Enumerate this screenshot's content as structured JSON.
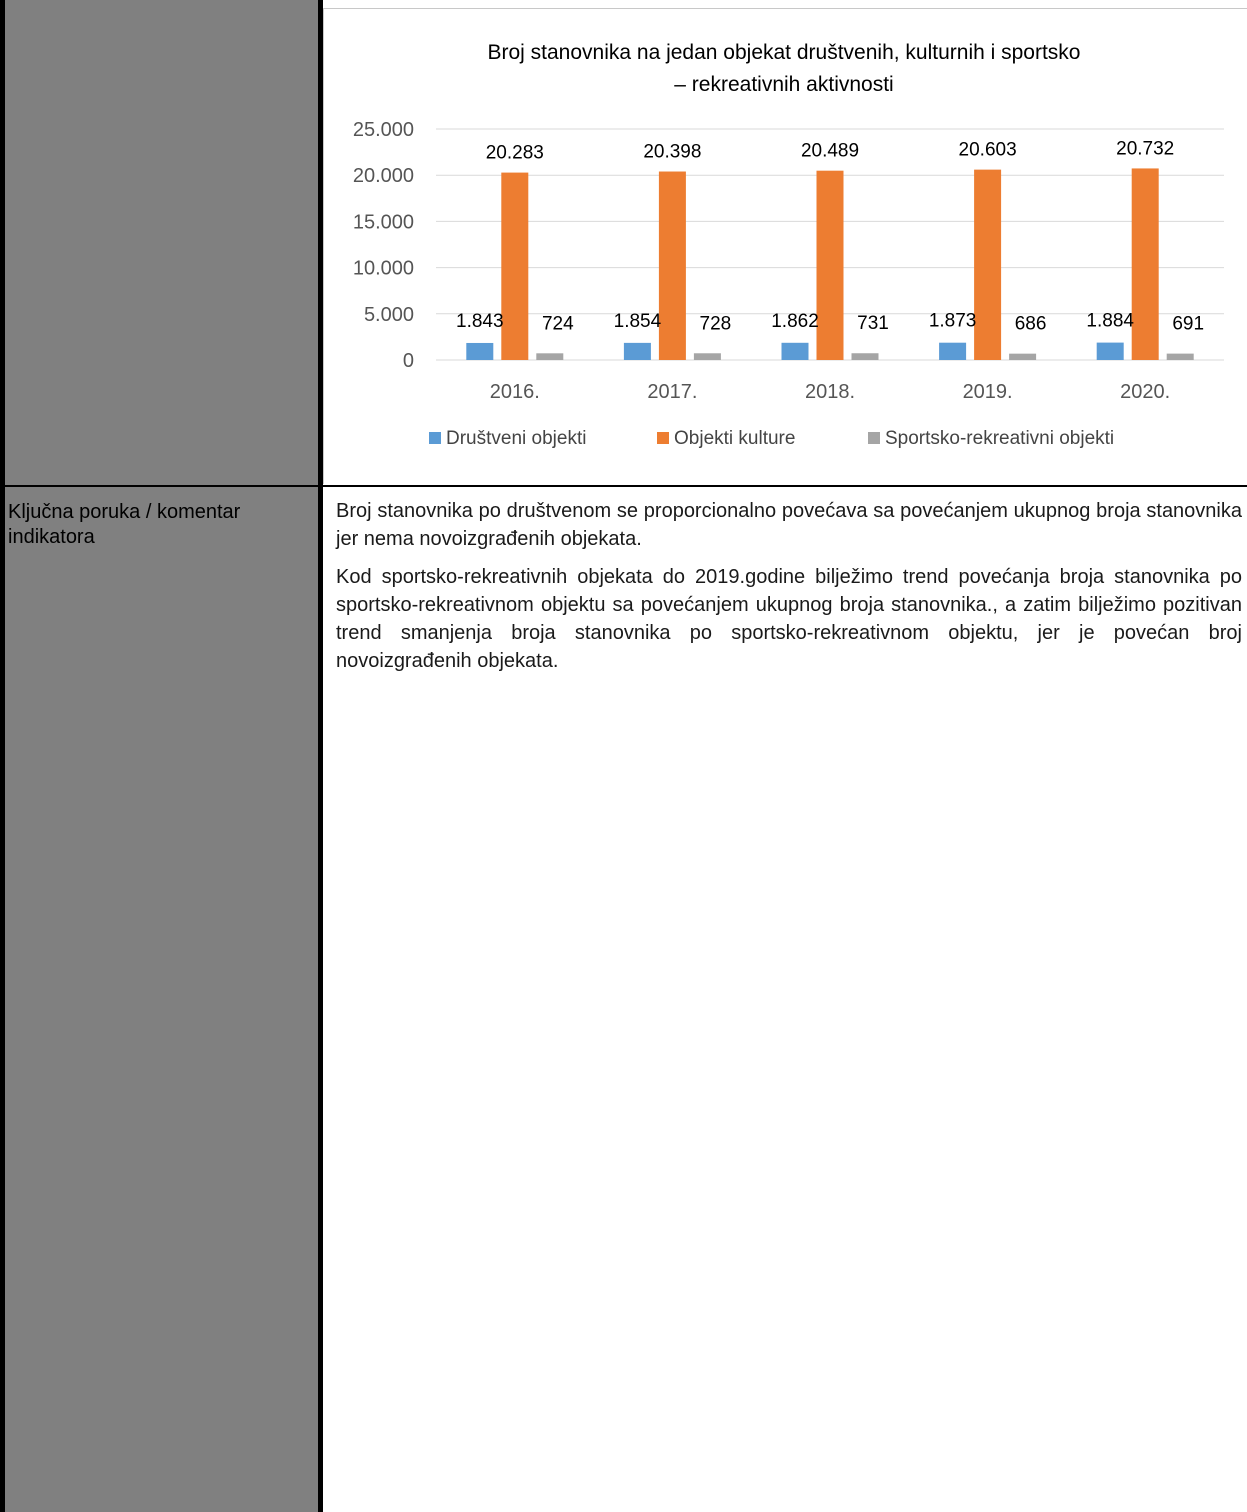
{
  "chart_data": {
    "type": "bar",
    "title_line1": "Broj stanovnika na jedan objekat društvenih, kulturnih i sportsko",
    "title_line2": "– rekreativnih aktivnosti",
    "categories": [
      "2016.",
      "2017.",
      "2018.",
      "2019.",
      "2020."
    ],
    "ylim": [
      0,
      25000
    ],
    "yticks": [
      0,
      5000,
      10000,
      15000,
      20000,
      25000
    ],
    "ytick_labels": [
      "0",
      "5.000",
      "10.000",
      "15.000",
      "20.000",
      "25.000"
    ],
    "grid": true,
    "legend_position": "bottom",
    "series": [
      {
        "name": "Društveni objekti",
        "color": "#5b9bd5",
        "values": [
          1843,
          1854,
          1862,
          1873,
          1884
        ],
        "labels": [
          "1.843",
          "1.854",
          "1.862",
          "1.873",
          "1.884"
        ]
      },
      {
        "name": "Objekti kulture",
        "color": "#ed7d31",
        "values": [
          20283,
          20398,
          20489,
          20603,
          20732
        ],
        "labels": [
          "20.283",
          "20.398",
          "20.489",
          "20.603",
          "20.732"
        ]
      },
      {
        "name": "Sportsko-rekreativni objekti",
        "color": "#a5a5a5",
        "values": [
          724,
          728,
          731,
          686,
          691
        ],
        "labels": [
          "724",
          "728",
          "731",
          "686",
          "691"
        ]
      }
    ]
  },
  "row": {
    "label": "Ključna poruka / komentar indikatora",
    "paragraphs": [
      "Broj stanovnika po društvenom se proporcionalno povećava sa povećanjem ukupnog broja stanovnika jer nema novoizgrađenih objekata.",
      "Kod sportsko-rekreativnih objekata do 2019.godine bilježimo trend povećanja broja stanovnika po sportsko-rekreativnom objektu sa povećanjem ukupnog broja stanovnika., a zatim bilježimo pozitivan trend smanjenja broja stanovnika po sportsko-rekreativnom objektu, jer je povećan broj novoizgrađenih objekata."
    ]
  }
}
